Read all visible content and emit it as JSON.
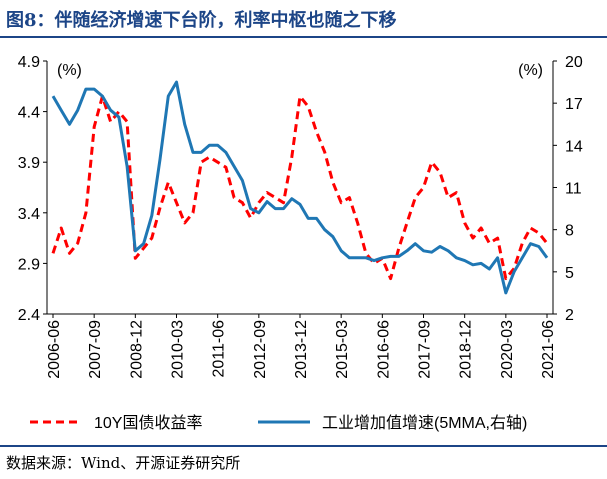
{
  "figure": {
    "title": "图8：伴随经济增速下台阶，利率中枢也随之下移",
    "source": "数据来源：Wind、开源证券研究所"
  },
  "colors": {
    "title": "#1c4587",
    "bond_yield": "#ff0000",
    "industrial_growth": "#1f77b4",
    "axis": "#000000"
  },
  "chart_data": {
    "type": "line",
    "left_axis": {
      "unit_label": "(%)",
      "range": [
        2.4,
        4.9
      ],
      "ticks": [
        "4.9",
        "4.4",
        "3.9",
        "3.4",
        "2.9",
        "2.4"
      ]
    },
    "right_axis": {
      "unit_label": "(%)",
      "range": [
        2,
        20
      ],
      "ticks": [
        "20",
        "17",
        "14",
        "11",
        "8",
        "5",
        "2"
      ]
    },
    "x_tick_labels": [
      "2006-06",
      "2007-09",
      "2008-12",
      "2010-03",
      "2011-06",
      "2012-09",
      "2013-12",
      "2015-03",
      "2016-06",
      "2017-09",
      "2018-12",
      "2020-03",
      "2021-06"
    ],
    "legend_position": "bottom",
    "grid": false,
    "series": [
      {
        "name": "10Y国债收益率",
        "axis": "left",
        "style": "dashed",
        "points": [
          [
            "2006-06",
            3.0
          ],
          [
            "2006-09",
            3.25
          ],
          [
            "2006-12",
            3.0
          ],
          [
            "2007-03",
            3.1
          ],
          [
            "2007-06",
            3.4
          ],
          [
            "2007-09",
            4.25
          ],
          [
            "2007-12",
            4.55
          ],
          [
            "2008-03",
            4.3
          ],
          [
            "2008-06",
            4.4
          ],
          [
            "2008-09",
            4.3
          ],
          [
            "2008-12",
            2.95
          ],
          [
            "2009-03",
            3.05
          ],
          [
            "2009-06",
            3.15
          ],
          [
            "2009-09",
            3.45
          ],
          [
            "2009-12",
            3.7
          ],
          [
            "2010-03",
            3.5
          ],
          [
            "2010-06",
            3.3
          ],
          [
            "2010-09",
            3.4
          ],
          [
            "2010-12",
            3.9
          ],
          [
            "2011-03",
            3.95
          ],
          [
            "2011-06",
            3.9
          ],
          [
            "2011-09",
            3.85
          ],
          [
            "2011-12",
            3.55
          ],
          [
            "2012-03",
            3.5
          ],
          [
            "2012-06",
            3.35
          ],
          [
            "2012-09",
            3.5
          ],
          [
            "2012-12",
            3.6
          ],
          [
            "2013-03",
            3.55
          ],
          [
            "2013-06",
            3.5
          ],
          [
            "2013-09",
            3.95
          ],
          [
            "2013-12",
            4.55
          ],
          [
            "2014-03",
            4.45
          ],
          [
            "2014-06",
            4.2
          ],
          [
            "2014-09",
            4.0
          ],
          [
            "2014-12",
            3.7
          ],
          [
            "2015-03",
            3.5
          ],
          [
            "2015-06",
            3.55
          ],
          [
            "2015-09",
            3.3
          ],
          [
            "2015-12",
            3.0
          ],
          [
            "2016-03",
            2.9
          ],
          [
            "2016-06",
            2.95
          ],
          [
            "2016-09",
            2.75
          ],
          [
            "2016-12",
            3.05
          ],
          [
            "2017-03",
            3.3
          ],
          [
            "2017-06",
            3.55
          ],
          [
            "2017-09",
            3.65
          ],
          [
            "2017-12",
            3.9
          ],
          [
            "2018-03",
            3.8
          ],
          [
            "2018-06",
            3.55
          ],
          [
            "2018-09",
            3.6
          ],
          [
            "2018-12",
            3.3
          ],
          [
            "2019-03",
            3.15
          ],
          [
            "2019-06",
            3.25
          ],
          [
            "2019-09",
            3.1
          ],
          [
            "2019-12",
            3.15
          ],
          [
            "2020-03",
            2.75
          ],
          [
            "2020-06",
            2.85
          ],
          [
            "2020-09",
            3.1
          ],
          [
            "2020-12",
            3.25
          ],
          [
            "2021-03",
            3.2
          ],
          [
            "2021-06",
            3.1
          ]
        ]
      },
      {
        "name": "工业增加值增速(5MMA,右轴)",
        "axis": "right",
        "style": "solid",
        "points": [
          [
            "2006-06",
            17.5
          ],
          [
            "2006-09",
            16.5
          ],
          [
            "2006-12",
            15.5
          ],
          [
            "2007-03",
            16.5
          ],
          [
            "2007-06",
            18.0
          ],
          [
            "2007-09",
            18.0
          ],
          [
            "2007-12",
            17.5
          ],
          [
            "2008-03",
            16.5
          ],
          [
            "2008-06",
            16.0
          ],
          [
            "2008-09",
            12.5
          ],
          [
            "2008-12",
            6.5
          ],
          [
            "2009-03",
            7.0
          ],
          [
            "2009-06",
            9.0
          ],
          [
            "2009-09",
            13.0
          ],
          [
            "2009-12",
            17.5
          ],
          [
            "2010-03",
            18.5
          ],
          [
            "2010-06",
            15.5
          ],
          [
            "2010-09",
            13.5
          ],
          [
            "2010-12",
            13.5
          ],
          [
            "2011-03",
            14.0
          ],
          [
            "2011-06",
            14.0
          ],
          [
            "2011-09",
            13.5
          ],
          [
            "2011-12",
            12.5
          ],
          [
            "2012-03",
            11.5
          ],
          [
            "2012-06",
            9.5
          ],
          [
            "2012-09",
            9.2
          ],
          [
            "2012-12",
            10.0
          ],
          [
            "2013-03",
            9.5
          ],
          [
            "2013-06",
            9.5
          ],
          [
            "2013-09",
            10.2
          ],
          [
            "2013-12",
            9.8
          ],
          [
            "2014-03",
            8.8
          ],
          [
            "2014-06",
            8.8
          ],
          [
            "2014-09",
            8.0
          ],
          [
            "2014-12",
            7.5
          ],
          [
            "2015-03",
            6.5
          ],
          [
            "2015-06",
            6.0
          ],
          [
            "2015-09",
            6.0
          ],
          [
            "2015-12",
            6.0
          ],
          [
            "2016-03",
            5.8
          ],
          [
            "2016-06",
            6.0
          ],
          [
            "2016-09",
            6.1
          ],
          [
            "2016-12",
            6.1
          ],
          [
            "2017-03",
            6.5
          ],
          [
            "2017-06",
            7.0
          ],
          [
            "2017-09",
            6.5
          ],
          [
            "2017-12",
            6.4
          ],
          [
            "2018-03",
            6.8
          ],
          [
            "2018-06",
            6.5
          ],
          [
            "2018-09",
            6.0
          ],
          [
            "2018-12",
            5.8
          ],
          [
            "2019-03",
            5.5
          ],
          [
            "2019-06",
            5.6
          ],
          [
            "2019-09",
            5.2
          ],
          [
            "2019-12",
            6.0
          ],
          [
            "2020-03",
            3.5
          ],
          [
            "2020-06",
            5.0
          ],
          [
            "2020-09",
            6.0
          ],
          [
            "2020-12",
            7.0
          ],
          [
            "2021-03",
            6.8
          ],
          [
            "2021-06",
            6.0
          ]
        ]
      }
    ]
  }
}
